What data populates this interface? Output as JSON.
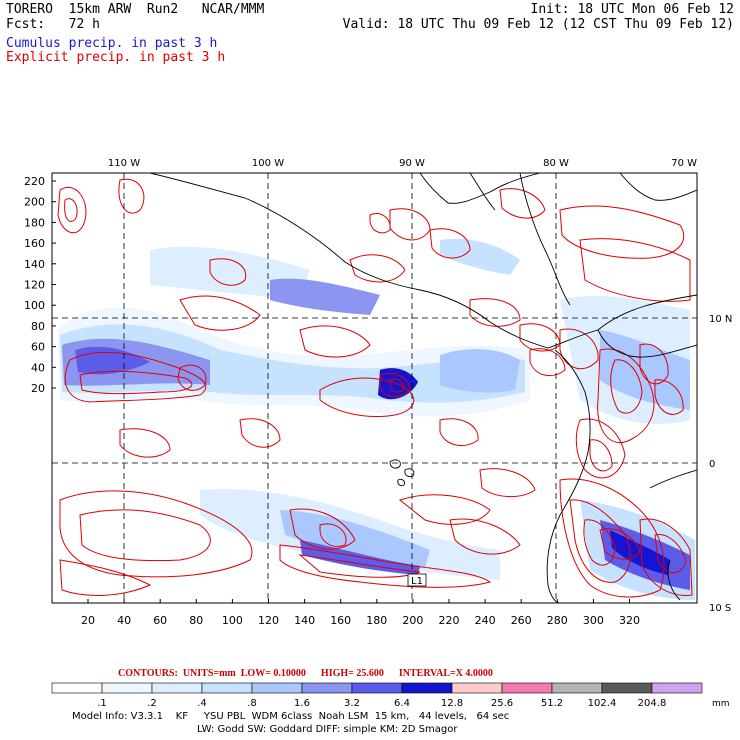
{
  "header": {
    "model": "TORERO",
    "resolution": "15km ARW",
    "run": "Run2",
    "org": "NCAR/MMM",
    "init": "Init: 18 UTC Mon 06 Feb 12",
    "fcst_label": "Fcst:",
    "fcst_value": "72 h",
    "valid": "Valid: 18 UTC Thu 09 Feb 12 (12 CST Thu 09 Feb 12)",
    "field1": "Cumulus precip. in past 3 h",
    "field2": "Explicit precip. in past 3 h"
  },
  "colors": {
    "field1": "#1a1acc",
    "field2": "#e00000",
    "contour": "#e00000",
    "footer_contour": "#cc0000"
  },
  "axes": {
    "lon_labels": [
      "110 W",
      "100 W",
      "90 W",
      "80 W",
      "70 W"
    ],
    "lat_labels": [
      "10 N",
      "0",
      "10 S"
    ],
    "y_ticks": [
      "220",
      "200",
      "180",
      "160",
      "140",
      "120",
      "100",
      "80",
      "60",
      "40",
      "20"
    ],
    "x_ticks": [
      "20",
      "40",
      "60",
      "80",
      "100",
      "120",
      "140",
      "160",
      "180",
      "200",
      "220",
      "240",
      "260",
      "280",
      "300",
      "320"
    ]
  },
  "marker": {
    "label": "L1"
  },
  "footer": {
    "contours_label": "CONTOURS:",
    "units": "UNITS=mm",
    "low": "LOW= 0.10000",
    "high": "HIGH= 25.600",
    "interval": "INTERVAL=X 4.0000",
    "unit_mm": "mm",
    "model_info_line1": "Model Info: V3.3.1    KF     YSU PBL  WDM 6class  Noah LSM  15 km,   44 levels,   64 sec",
    "model_info_line2": "LW: Godd SW: Goddard DIFF: simple KM: 2D Smagor"
  },
  "colorbar": {
    "labels": [
      ".1",
      ".2",
      ".4",
      ".8",
      "1.6",
      "3.2",
      "6.4",
      "12.8",
      "25.6",
      "51.2",
      "102.4",
      "204.8"
    ],
    "colors": [
      "#ffffff",
      "#eef6ff",
      "#dceeff",
      "#c6e2ff",
      "#aac8ff",
      "#8c96f0",
      "#5c5ceb",
      "#1414d2",
      "#ffcccc",
      "#f07cb4",
      "#b4b4b4",
      "#5a5a5a",
      "#d2a0f0"
    ]
  }
}
